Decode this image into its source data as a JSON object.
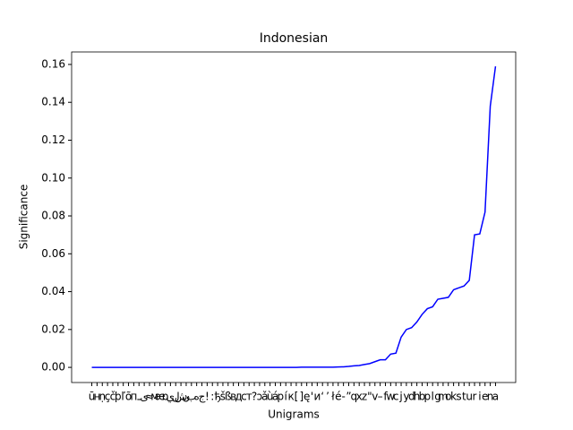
{
  "chart_data": {
    "type": "line",
    "title": "Indonesian",
    "xlabel": "Unigrams",
    "ylabel": "Significance",
    "categories": [
      "ū",
      "н",
      "ṇ",
      "ç",
      "č",
      "þ",
      "ľ",
      "õ",
      "п",
      "ـ",
      "ی",
      "≈",
      "м",
      "æ",
      "ɒ",
      "ي",
      "ل",
      "ش",
      "ن",
      "ب",
      "ه",
      "ج",
      "!",
      ":",
      "ђ",
      "š",
      "ß",
      "в",
      "д",
      "с",
      "т",
      "?",
      "ɔ",
      "ǎ",
      "ù",
      "á",
      "р",
      "í",
      "к",
      "[",
      "]",
      "ę",
      "'",
      "и",
      "‘",
      "’",
      "ł",
      "é",
      "-",
      "”",
      "q",
      "x",
      "z",
      "\"",
      "v",
      "–",
      "f",
      "w",
      "c",
      "j",
      "y",
      "d",
      "h",
      "b",
      "p",
      "l",
      "g",
      "m",
      "o",
      "k",
      "s",
      "t",
      "u",
      "r",
      "i",
      "e",
      "n",
      "a"
    ],
    "series": [
      {
        "name": "Significance",
        "color": "#0000ff",
        "values": [
          0,
          0,
          0,
          0,
          0,
          0,
          0,
          0,
          0,
          0,
          0,
          0,
          0,
          0,
          0,
          0,
          0,
          0,
          0,
          0,
          0,
          0,
          0,
          0,
          0,
          0,
          0,
          0,
          0,
          0,
          0,
          0,
          0,
          0,
          0,
          0,
          0,
          0,
          0,
          0,
          0.0001,
          0.0001,
          0.0001,
          0.0001,
          0.0001,
          0.0001,
          0.0001,
          0.0002,
          0.0003,
          0.0005,
          0.0008,
          0.001,
          0.0015,
          0.002,
          0.003,
          0.004,
          0.004,
          0.007,
          0.0075,
          0.016,
          0.02,
          0.021,
          0.024,
          0.028,
          0.031,
          0.032,
          0.036,
          0.0365,
          0.037,
          0.041,
          0.042,
          0.043,
          0.046,
          0.07,
          0.0705,
          0.082,
          0.138,
          0.159
        ]
      }
    ],
    "ylim": [
      -0.008,
      0.1666
    ],
    "yticks": [
      {
        "value": 0,
        "label": "0.00"
      },
      {
        "value": 0.02,
        "label": "0.02"
      },
      {
        "value": 0.04,
        "label": "0.04"
      },
      {
        "value": 0.06,
        "label": "0.06"
      },
      {
        "value": 0.08,
        "label": "0.08"
      },
      {
        "value": 0.1,
        "label": "0.10"
      },
      {
        "value": 0.12,
        "label": "0.12"
      },
      {
        "value": 0.14,
        "label": "0.14"
      },
      {
        "value": 0.16,
        "label": "0.16"
      }
    ]
  }
}
